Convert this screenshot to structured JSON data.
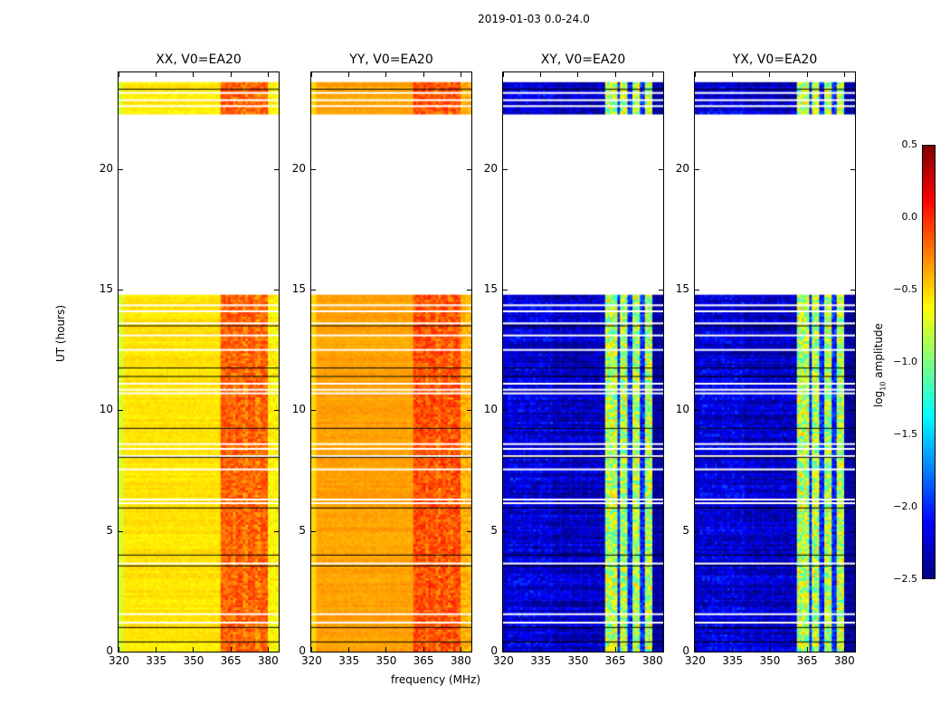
{
  "chart_data": {
    "type": "heatmap",
    "title": "2019-01-03 0.0-24.0",
    "xlabel": "frequency (MHz)",
    "ylabel": "UT (hours)",
    "xlim": [
      320,
      384.4
    ],
    "ylim": [
      0,
      24
    ],
    "xticks": [
      320,
      335,
      350,
      365,
      380
    ],
    "yticks": [
      0,
      5,
      10,
      15,
      20
    ],
    "panels": [
      {
        "title": "XX, V0=EA20",
        "base": -0.55,
        "edge": -0.75,
        "rfi": -0.15,
        "rfi_stripes": -0.3,
        "beyond_rfi": -0.6
      },
      {
        "title": "YY, V0=EA20",
        "base": -0.35,
        "edge": -0.5,
        "rfi": -0.1,
        "rfi_stripes": -0.25,
        "beyond_rfi": -0.4
      },
      {
        "title": "XY, V0=EA20",
        "base": -2.3,
        "edge": -2.35,
        "rfi": -0.85,
        "rfi_stripes": -2.1,
        "beyond_rfi": -2.4
      },
      {
        "title": "YX, V0=EA20",
        "base": -2.3,
        "edge": -2.35,
        "rfi": -0.85,
        "rfi_stripes": -2.1,
        "beyond_rfi": -2.4
      }
    ],
    "rfi_band_mhz": [
      361,
      380
    ],
    "rfi_stripe_mhz": [
      366.5,
      371.2,
      375.8
    ],
    "gaps_hours": [
      [
        14.8,
        22.3
      ],
      [
        23.6,
        24
      ]
    ],
    "white_lines_hours": [
      1.2,
      1.55,
      3.65,
      6.15,
      6.3,
      7.55,
      8.1,
      8.4,
      8.6,
      10.7,
      10.85,
      11.1,
      12.5,
      13.1,
      13.6,
      14.1,
      14.35,
      22.6,
      22.85,
      23.15
    ],
    "black_lines_hours": [
      0.4,
      1.0,
      3.55,
      4.0,
      5.95,
      8.05,
      9.25,
      11.4,
      11.75,
      13.5,
      23.3
    ],
    "colorbar": {
      "label": "log10 amplitude",
      "label_main": "log",
      "label_sub": "10",
      "label_rest": " amplitude",
      "range": [
        -2.5,
        0.5
      ],
      "ticks": [
        "0.5",
        "0.0",
        "−0.5",
        "−1.0",
        "−1.5",
        "−2.0",
        "−2.5"
      ],
      "colormap": "jet"
    }
  }
}
